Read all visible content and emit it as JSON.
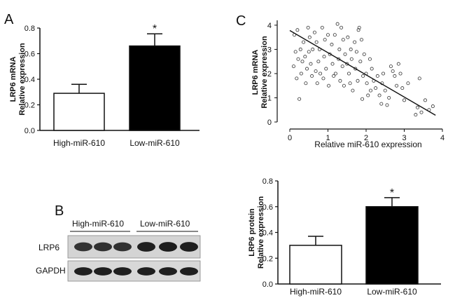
{
  "panel_letters": {
    "a": "A",
    "b": "B",
    "c": "C"
  },
  "chart_data": [
    {
      "id": "A",
      "type": "bar",
      "categories": [
        "High-miR-610",
        "Low-miR-610"
      ],
      "values": [
        0.29,
        0.66
      ],
      "errors": [
        0.07,
        0.095
      ],
      "fills": [
        "#ffffff",
        "#000000"
      ],
      "significance": [
        "",
        "*"
      ],
      "ylabel_lines": [
        "LRP6 mRNA",
        "Relative expression"
      ],
      "ylim": [
        0,
        0.8
      ],
      "yticks": [
        0.0,
        0.2,
        0.4,
        0.6,
        0.8
      ],
      "ytick_labels": [
        "0.0",
        "0.2",
        "0.4",
        "0.6",
        "0.8"
      ]
    },
    {
      "id": "C",
      "type": "scatter",
      "xlabel": "Relative miR-610 expression",
      "ylabel_lines": [
        "LRP6 mRNA",
        "Relative expression"
      ],
      "xlim": [
        0,
        4
      ],
      "ylim": [
        0,
        4.2
      ],
      "xticks": [
        0,
        1,
        2,
        3,
        4
      ],
      "yticks": [
        0,
        1,
        2,
        3,
        4
      ],
      "fit_line": {
        "x": [
          0,
          3.82
        ],
        "y": [
          3.78,
          0.28
        ]
      },
      "points": [
        [
          0.1,
          2.3
        ],
        [
          0.12,
          3.6
        ],
        [
          0.15,
          2.9
        ],
        [
          0.18,
          1.8
        ],
        [
          0.2,
          3.8
        ],
        [
          0.22,
          2.6
        ],
        [
          0.25,
          0.95
        ],
        [
          0.28,
          3.0
        ],
        [
          0.3,
          2.0
        ],
        [
          0.33,
          2.5
        ],
        [
          0.36,
          3.3
        ],
        [
          0.4,
          2.7
        ],
        [
          0.42,
          1.6
        ],
        [
          0.45,
          2.2
        ],
        [
          0.48,
          3.9
        ],
        [
          0.5,
          2.9
        ],
        [
          0.52,
          3.5
        ],
        [
          0.55,
          2.4
        ],
        [
          0.58,
          1.9
        ],
        [
          0.6,
          3.0
        ],
        [
          0.65,
          3.7
        ],
        [
          0.68,
          2.1
        ],
        [
          0.7,
          3.3
        ],
        [
          0.72,
          1.6
        ],
        [
          0.75,
          2.5
        ],
        [
          0.78,
          3.0
        ],
        [
          0.8,
          2.0
        ],
        [
          0.85,
          3.9
        ],
        [
          0.88,
          1.8
        ],
        [
          0.9,
          2.7
        ],
        [
          0.92,
          3.4
        ],
        [
          0.95,
          2.2
        ],
        [
          1.0,
          3.6
        ],
        [
          1.02,
          1.5
        ],
        [
          1.05,
          2.8
        ],
        [
          1.1,
          3.2
        ],
        [
          1.12,
          2.4
        ],
        [
          1.15,
          1.9
        ],
        [
          1.18,
          3.6
        ],
        [
          1.2,
          2.0
        ],
        [
          1.25,
          4.05
        ],
        [
          1.28,
          2.6
        ],
        [
          1.3,
          3.0
        ],
        [
          1.32,
          1.7
        ],
        [
          1.35,
          3.9
        ],
        [
          1.38,
          2.3
        ],
        [
          1.4,
          3.4
        ],
        [
          1.42,
          1.5
        ],
        [
          1.45,
          2.8
        ],
        [
          1.5,
          2.4
        ],
        [
          1.52,
          3.5
        ],
        [
          1.55,
          2.0
        ],
        [
          1.58,
          1.6
        ],
        [
          1.6,
          3.0
        ],
        [
          1.62,
          2.6
        ],
        [
          1.65,
          1.3
        ],
        [
          1.7,
          3.3
        ],
        [
          1.72,
          2.2
        ],
        [
          1.75,
          2.9
        ],
        [
          1.78,
          1.7
        ],
        [
          1.8,
          3.8
        ],
        [
          1.82,
          3.9
        ],
        [
          1.85,
          2.5
        ],
        [
          1.88,
          3.4
        ],
        [
          1.9,
          0.95
        ],
        [
          1.92,
          1.9
        ],
        [
          1.95,
          2.8
        ],
        [
          2.0,
          2.0
        ],
        [
          2.02,
          1.6
        ],
        [
          2.05,
          1.1
        ],
        [
          2.1,
          2.6
        ],
        [
          2.12,
          1.3
        ],
        [
          2.15,
          2.2
        ],
        [
          2.2,
          1.7
        ],
        [
          2.25,
          1.4
        ],
        [
          2.3,
          1.9
        ],
        [
          2.35,
          1.1
        ],
        [
          2.4,
          0.75
        ],
        [
          2.42,
          1.6
        ],
        [
          2.45,
          2.0
        ],
        [
          2.5,
          1.3
        ],
        [
          2.55,
          0.7
        ],
        [
          2.6,
          1.0
        ],
        [
          2.65,
          2.3
        ],
        [
          2.7,
          2.1
        ],
        [
          2.75,
          1.9
        ],
        [
          2.8,
          1.5
        ],
        [
          2.85,
          2.4
        ],
        [
          2.9,
          2.0
        ],
        [
          2.95,
          1.4
        ],
        [
          3.0,
          0.9
        ],
        [
          3.1,
          1.6
        ],
        [
          3.3,
          0.3
        ],
        [
          3.35,
          0.6
        ],
        [
          3.4,
          1.8
        ],
        [
          3.45,
          0.4
        ],
        [
          3.55,
          0.9
        ],
        [
          3.65,
          0.5
        ],
        [
          3.75,
          0.65
        ]
      ]
    },
    {
      "id": "D",
      "type": "bar",
      "categories": [
        "High-miR-610",
        "Low-miR-610"
      ],
      "values": [
        0.3,
        0.6
      ],
      "errors": [
        0.07,
        0.07
      ],
      "fills": [
        "#ffffff",
        "#000000"
      ],
      "significance": [
        "",
        "*"
      ],
      "ylabel_lines": [
        "LRP6 protein",
        "Relative expression"
      ],
      "ylim": [
        0,
        0.8
      ],
      "yticks": [
        0.0,
        0.2,
        0.4,
        0.6,
        0.8
      ],
      "ytick_labels": [
        "0.0",
        "0.2",
        "0.4",
        "0.6",
        "0.8"
      ]
    }
  ],
  "blot": {
    "group_labels": [
      "High-miR-610",
      "Low-miR-610"
    ],
    "row_labels": [
      "LRP6",
      "GAPDH"
    ],
    "lane_intensity": {
      "LRP6": [
        0.55,
        0.6,
        0.58,
        0.9,
        0.95,
        0.92
      ],
      "GAPDH": [
        0.9,
        0.92,
        0.9,
        0.92,
        0.9,
        0.92
      ]
    }
  }
}
